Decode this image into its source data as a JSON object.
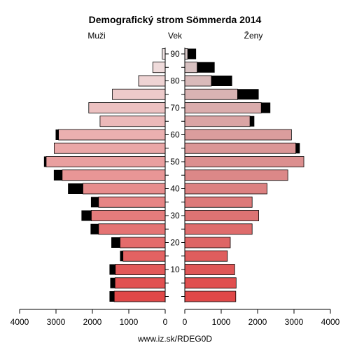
{
  "chart_data": {
    "type": "bar",
    "title": "Demografický strom Sömmerda 2014",
    "left_label": "Muži",
    "center_label": "Vek",
    "right_label": "Ženy",
    "source": "www.iz.sk/RDEG0D",
    "age_ticks": [
      "10",
      "20",
      "30",
      "40",
      "50",
      "60",
      "70",
      "80",
      "90"
    ],
    "x_ticks": [
      "4000",
      "3000",
      "2000",
      "1000",
      "0"
    ],
    "x_ticks_right": [
      "0",
      "1000",
      "2000",
      "3000",
      "4000"
    ],
    "xlim": [
      0,
      4000
    ],
    "age_groups": [
      "0-4",
      "5-9",
      "10-14",
      "15-19",
      "20-24",
      "25-29",
      "30-34",
      "35-39",
      "40-44",
      "45-49",
      "50-54",
      "55-59",
      "60-64",
      "65-69",
      "70-74",
      "75-79",
      "80-84",
      "85-89",
      "90+"
    ],
    "series": [
      {
        "name": "Muži",
        "values": [
          1400,
          1380,
          1370,
          1160,
          1240,
          1830,
          2030,
          1830,
          2260,
          2830,
          3270,
          3050,
          2930,
          1790,
          2100,
          1450,
          730,
          340,
          80
        ],
        "surplus": [
          130,
          130,
          160,
          80,
          240,
          220,
          270,
          210,
          410,
          230,
          60,
          0,
          80,
          0,
          0,
          0,
          0,
          0,
          0
        ]
      },
      {
        "name": "Ženy",
        "values": [
          1400,
          1410,
          1370,
          1170,
          1250,
          1850,
          2030,
          1850,
          2260,
          2830,
          3270,
          3050,
          2930,
          1790,
          2100,
          1450,
          730,
          340,
          80
        ],
        "surplus": [
          0,
          0,
          0,
          0,
          0,
          0,
          0,
          0,
          0,
          0,
          0,
          110,
          0,
          120,
          250,
          580,
          570,
          480,
          230
        ]
      }
    ],
    "colors": {
      "male_gradient_start": "#e04848",
      "male_gradient_end": "#f0e4e4",
      "female_gradient_start": "#e04848",
      "female_gradient_end": "#d8c8c8",
      "surplus": "#000000"
    },
    "grid": false
  }
}
